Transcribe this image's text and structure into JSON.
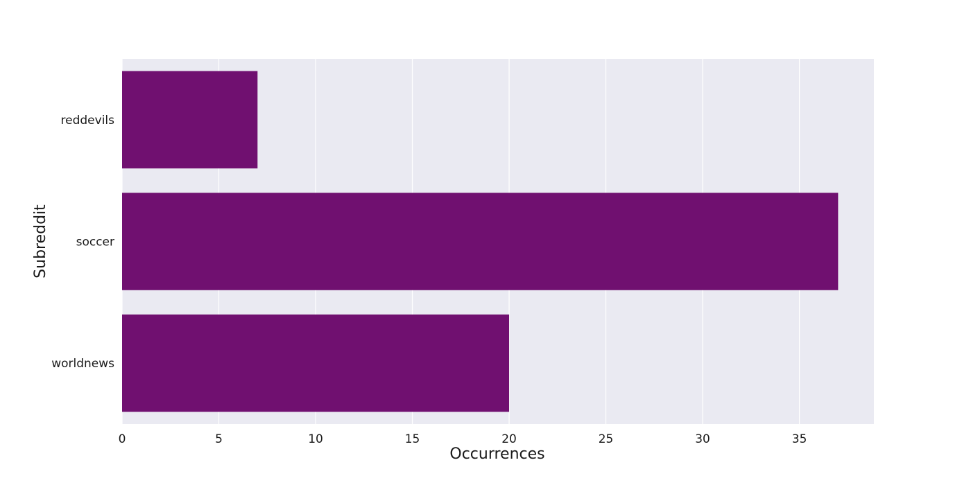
{
  "chart_data": {
    "type": "bar",
    "orientation": "horizontal",
    "categories": [
      "reddevils",
      "soccer",
      "worldnews"
    ],
    "values": [
      7,
      37,
      20
    ],
    "title": "",
    "xlabel": "Occurrences",
    "ylabel": "Subreddit",
    "xlim": [
      0,
      38.85
    ],
    "xticks": [
      0,
      5,
      10,
      15,
      20,
      25,
      30,
      35
    ],
    "grid": true,
    "legend": "none",
    "colors": {
      "bar": "#701070",
      "plot_background": "#eaeaf2",
      "grid": "#ffffff",
      "text": "#1a1a1a"
    }
  }
}
